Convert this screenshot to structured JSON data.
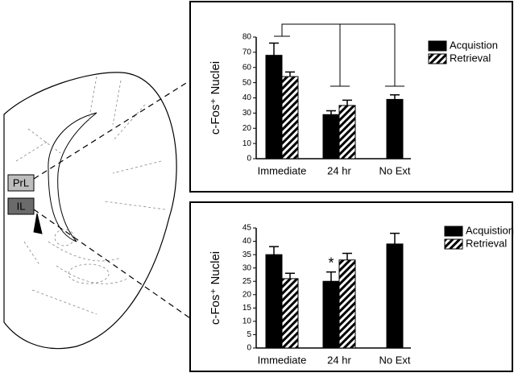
{
  "chart_data": [
    {
      "type": "bar",
      "y_label": "c-Fos⁺ Nuclei",
      "categories": [
        "Immediate",
        "24 hr",
        "No Ext"
      ],
      "series": [
        {
          "name": "Acquistion",
          "color": "#000000",
          "values": [
            68,
            29,
            39
          ],
          "errors": [
            8,
            2.5,
            3
          ]
        },
        {
          "name": "Retrieval",
          "color": "hatch",
          "values": [
            54,
            35,
            null
          ],
          "errors": [
            3,
            3.5,
            null
          ]
        }
      ],
      "ylim": [
        0,
        80
      ],
      "yticks": [
        0,
        10,
        20,
        30,
        40,
        50,
        60,
        70,
        80
      ]
    },
    {
      "type": "bar",
      "y_label": "c-Fos⁺ Nuclei",
      "categories": [
        "Immediate",
        "24 hr",
        "No Ext"
      ],
      "series": [
        {
          "name": "Acquistion",
          "color": "#000000",
          "values": [
            35,
            25,
            39
          ],
          "errors": [
            3,
            3.5,
            4
          ]
        },
        {
          "name": "Retrieval",
          "color": "hatch",
          "values": [
            26,
            33,
            null
          ],
          "errors": [
            2,
            2.5,
            null
          ]
        }
      ],
      "annotation": "*",
      "ylim": [
        0,
        45
      ],
      "yticks": [
        0,
        5,
        10,
        15,
        20,
        25,
        30,
        35,
        40,
        45
      ]
    }
  ],
  "diagram": {
    "labels": [
      "PrL",
      "IL"
    ]
  }
}
